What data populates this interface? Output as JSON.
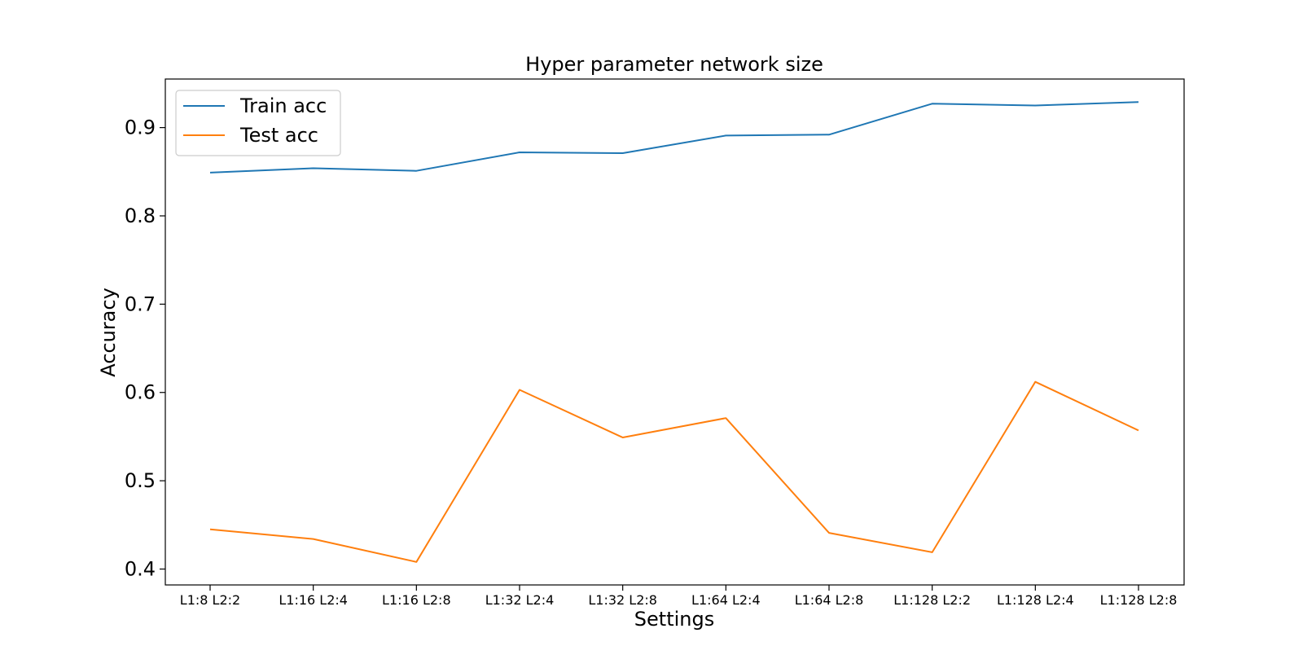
{
  "chart_data": {
    "type": "line",
    "title": "Hyper parameter network size",
    "xlabel": "Settings",
    "ylabel": "Accuracy",
    "categories": [
      "L1:8 L2:2",
      "L1:16 L2:4",
      "L1:16 L2:8",
      "L1:32 L2:4",
      "L1:32 L2:8",
      "L1:64 L2:4",
      "L1:64 L2:8",
      "L1:128 L2:2",
      "L1:128 L2:4",
      "L1:128 L2:8"
    ],
    "series": [
      {
        "name": "Train acc",
        "color": "#1f77b4",
        "values": [
          0.849,
          0.854,
          0.851,
          0.872,
          0.871,
          0.891,
          0.892,
          0.927,
          0.925,
          0.929
        ]
      },
      {
        "name": "Test acc",
        "color": "#ff7f0e",
        "values": [
          0.445,
          0.434,
          0.408,
          0.603,
          0.549,
          0.571,
          0.441,
          0.419,
          0.612,
          0.557
        ]
      }
    ],
    "ylim": [
      0.382,
      0.955
    ],
    "yticks": [
      "0.4",
      "0.5",
      "0.6",
      "0.7",
      "0.8",
      "0.9"
    ],
    "grid": false,
    "legend": "upper-left"
  }
}
